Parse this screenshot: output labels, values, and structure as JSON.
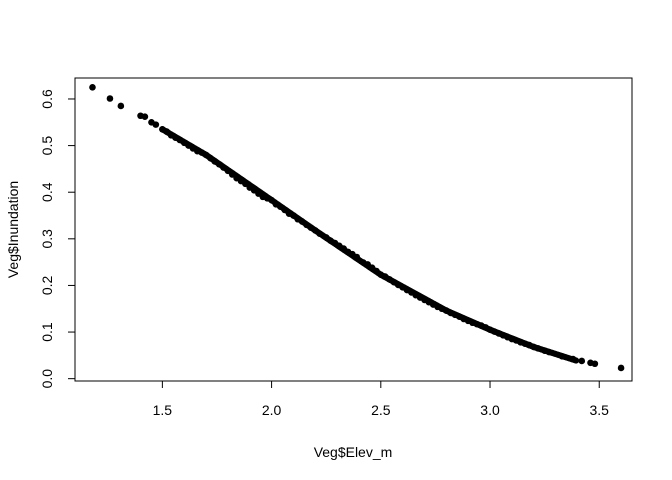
{
  "chart_data": {
    "type": "scatter",
    "title": "",
    "xlabel": "Veg$Elev_m",
    "ylabel": "Veg$Inundation",
    "xlim": [
      1.1,
      3.65
    ],
    "ylim": [
      -0.005,
      0.645
    ],
    "xticks": [
      1.5,
      2.0,
      2.5,
      3.0,
      3.5
    ],
    "xtick_labels": [
      "1.5",
      "2.0",
      "2.5",
      "3.0",
      "3.5"
    ],
    "yticks": [
      0.0,
      0.1,
      0.2,
      0.3,
      0.4,
      0.5,
      0.6
    ],
    "ytick_labels": [
      "0.0",
      "0.1",
      "0.2",
      "0.3",
      "0.4",
      "0.5",
      "0.6"
    ],
    "grid": false,
    "point_color": "#000000",
    "curve": {
      "x": [
        1.18,
        1.5,
        1.7,
        2.0,
        2.2,
        2.5,
        2.8,
        3.0,
        3.2,
        3.4,
        3.6
      ],
      "y": [
        0.625,
        0.535,
        0.48,
        0.383,
        0.318,
        0.223,
        0.146,
        0.105,
        0.068,
        0.038,
        0.023
      ]
    },
    "series": [
      {
        "x": [
          1.18,
          1.26,
          1.31,
          1.4,
          1.42,
          1.45,
          1.47,
          1.5,
          1.52,
          1.54,
          1.56,
          1.58,
          1.6,
          1.62,
          1.64,
          1.66,
          1.68,
          1.7,
          1.72,
          1.74,
          1.76,
          1.78,
          1.8,
          1.82,
          1.84,
          1.86,
          1.88,
          1.9,
          1.92,
          1.94,
          1.96,
          1.98,
          2.0,
          2.02,
          2.04,
          2.06,
          2.08,
          2.1,
          2.12,
          2.14,
          2.16,
          2.18,
          2.2,
          2.22,
          2.25,
          2.27,
          2.29,
          2.31,
          2.33,
          2.35,
          2.37,
          2.39,
          2.42,
          2.44,
          2.46,
          2.48,
          2.5,
          2.52,
          2.54,
          2.56,
          2.58,
          2.6,
          2.62,
          2.64,
          2.66,
          2.68,
          2.7,
          2.72,
          2.74,
          2.76,
          2.78,
          2.8,
          2.82,
          2.84,
          2.86,
          2.88,
          2.9,
          2.92,
          2.94,
          2.96,
          2.98,
          3.0,
          3.02,
          3.04,
          3.06,
          3.08,
          3.1,
          3.12,
          3.14,
          3.16,
          3.18,
          3.2,
          3.22,
          3.25,
          3.27,
          3.33,
          3.38,
          3.42,
          3.46,
          3.48,
          3.6
        ],
        "y": [
          0.625,
          0.601,
          0.585,
          0.564,
          0.562,
          0.55,
          0.545,
          0.535,
          0.53,
          0.522,
          0.517,
          0.512,
          0.506,
          0.5,
          0.494,
          0.488,
          0.485,
          0.48,
          0.473,
          0.466,
          0.46,
          0.453,
          0.446,
          0.438,
          0.43,
          0.424,
          0.418,
          0.41,
          0.404,
          0.397,
          0.39,
          0.387,
          0.383,
          0.374,
          0.369,
          0.362,
          0.354,
          0.35,
          0.342,
          0.337,
          0.33,
          0.324,
          0.318,
          0.311,
          0.303,
          0.296,
          0.291,
          0.285,
          0.279,
          0.272,
          0.267,
          0.261,
          0.249,
          0.245,
          0.238,
          0.231,
          0.223,
          0.219,
          0.213,
          0.207,
          0.201,
          0.196,
          0.19,
          0.185,
          0.179,
          0.174,
          0.169,
          0.164,
          0.159,
          0.154,
          0.15,
          0.146,
          0.141,
          0.137,
          0.133,
          0.128,
          0.124,
          0.12,
          0.117,
          0.114,
          0.11,
          0.105,
          0.101,
          0.097,
          0.093,
          0.089,
          0.085,
          0.082,
          0.078,
          0.075,
          0.072,
          0.068,
          0.065,
          0.06,
          0.057,
          0.048,
          0.042,
          0.038,
          0.034,
          0.032,
          0.023
        ]
      }
    ]
  }
}
